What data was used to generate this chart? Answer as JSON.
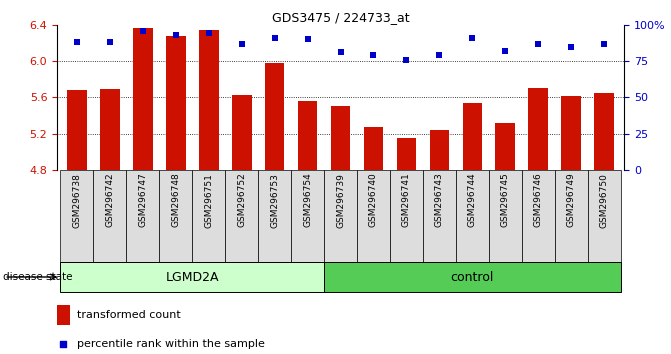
{
  "title": "GDS3475 / 224733_at",
  "samples": [
    "GSM296738",
    "GSM296742",
    "GSM296747",
    "GSM296748",
    "GSM296751",
    "GSM296752",
    "GSM296753",
    "GSM296754",
    "GSM296739",
    "GSM296740",
    "GSM296741",
    "GSM296743",
    "GSM296744",
    "GSM296745",
    "GSM296746",
    "GSM296749",
    "GSM296750"
  ],
  "bar_values": [
    5.68,
    5.69,
    6.36,
    6.28,
    6.34,
    5.63,
    5.98,
    5.56,
    5.51,
    5.27,
    5.15,
    5.24,
    5.54,
    5.32,
    5.7,
    5.62,
    5.65
  ],
  "percentile_values": [
    88,
    88,
    96,
    93,
    94,
    87,
    91,
    90,
    81,
    79,
    76,
    79,
    91,
    82,
    87,
    85,
    87
  ],
  "ylim_left": [
    4.8,
    6.4
  ],
  "ylim_right": [
    0,
    100
  ],
  "yticks_left": [
    4.8,
    5.2,
    5.6,
    6.0,
    6.4
  ],
  "yticks_right": [
    0,
    25,
    50,
    75,
    100
  ],
  "ytick_labels_right": [
    "0",
    "25",
    "50",
    "75",
    "100%"
  ],
  "bar_color": "#cc1100",
  "dot_color": "#0000cc",
  "grid_color": "black",
  "n_lgmd2a": 8,
  "lgmd2a_label": "LGMD2A",
  "control_label": "control",
  "disease_state_label": "disease state",
  "legend_bar_label": "transformed count",
  "legend_dot_label": "percentile rank within the sample",
  "tick_color_left": "#cc1100",
  "tick_color_right": "#0000cc",
  "lgmd2a_color": "#ccffcc",
  "control_color": "#55cc55",
  "label_box_color": "#dddddd",
  "bar_width": 0.6
}
